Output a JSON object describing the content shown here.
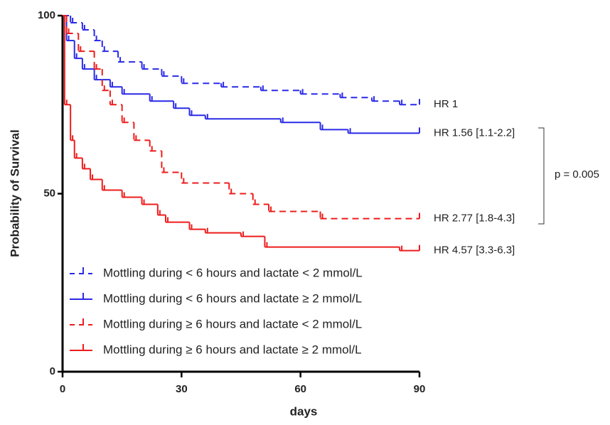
{
  "chart_data": {
    "type": "step",
    "xlabel": "days",
    "ylabel": "Probability of Survival",
    "xlim": [
      0,
      90
    ],
    "xticks": [
      0,
      30,
      60,
      90
    ],
    "ylim": [
      0,
      100
    ],
    "yticks": [
      0,
      50,
      100
    ],
    "legend": "lower left",
    "annotation": "p = 0.005",
    "series": [
      {
        "name": "Mottling during < 6 hours and lactate < 2 mmol/L",
        "color": "#2a2ae8",
        "dashed": true,
        "hr_label": "HR  1",
        "x": [
          0,
          2,
          5,
          8,
          10,
          14,
          20,
          25,
          30,
          40,
          50,
          60,
          70,
          78,
          85,
          90
        ],
        "values": [
          100,
          98,
          96,
          93,
          90,
          87,
          85,
          83,
          81,
          80,
          79,
          78,
          77,
          76,
          75,
          75
        ]
      },
      {
        "name": "Mottling during < 6 hours and lactate ≥ 2 mmol/L",
        "color": "#2a2ae8",
        "dashed": false,
        "hr_label": "HR 1.56 [1.1-2.2]",
        "x": [
          0,
          1,
          3,
          5,
          8,
          12,
          15,
          22,
          28,
          32,
          36,
          55,
          65,
          72,
          90
        ],
        "values": [
          100,
          93,
          88,
          85,
          82,
          80,
          78,
          76,
          74,
          72,
          71,
          70,
          68,
          67,
          67
        ]
      },
      {
        "name": "Mottling during ≥ 6 hours and lactate < 2 mmol/L",
        "color": "#ee1c1c",
        "dashed": true,
        "hr_label": "HR 2.77 [1.8-4.3]",
        "x": [
          0,
          1,
          4,
          8,
          10,
          12,
          15,
          18,
          22,
          25,
          30,
          42,
          48,
          52,
          65,
          90
        ],
        "values": [
          100,
          95,
          90,
          85,
          79,
          75,
          70,
          65,
          62,
          56,
          53,
          50,
          47,
          45,
          43,
          43
        ]
      },
      {
        "name": "Mottling during ≥ 6 hours and lactate ≥ 2 mmol/L",
        "color": "#ee1c1c",
        "dashed": false,
        "hr_label": "HR 4.57 [3.3-6.3]",
        "x": [
          0,
          0.5,
          2,
          3,
          5,
          7,
          10,
          15,
          20,
          24,
          26,
          32,
          36,
          45,
          51,
          85,
          90
        ],
        "values": [
          100,
          75,
          65,
          60,
          57,
          54,
          51,
          49,
          47,
          44,
          42,
          40,
          39,
          38,
          35,
          34,
          34
        ]
      }
    ]
  }
}
